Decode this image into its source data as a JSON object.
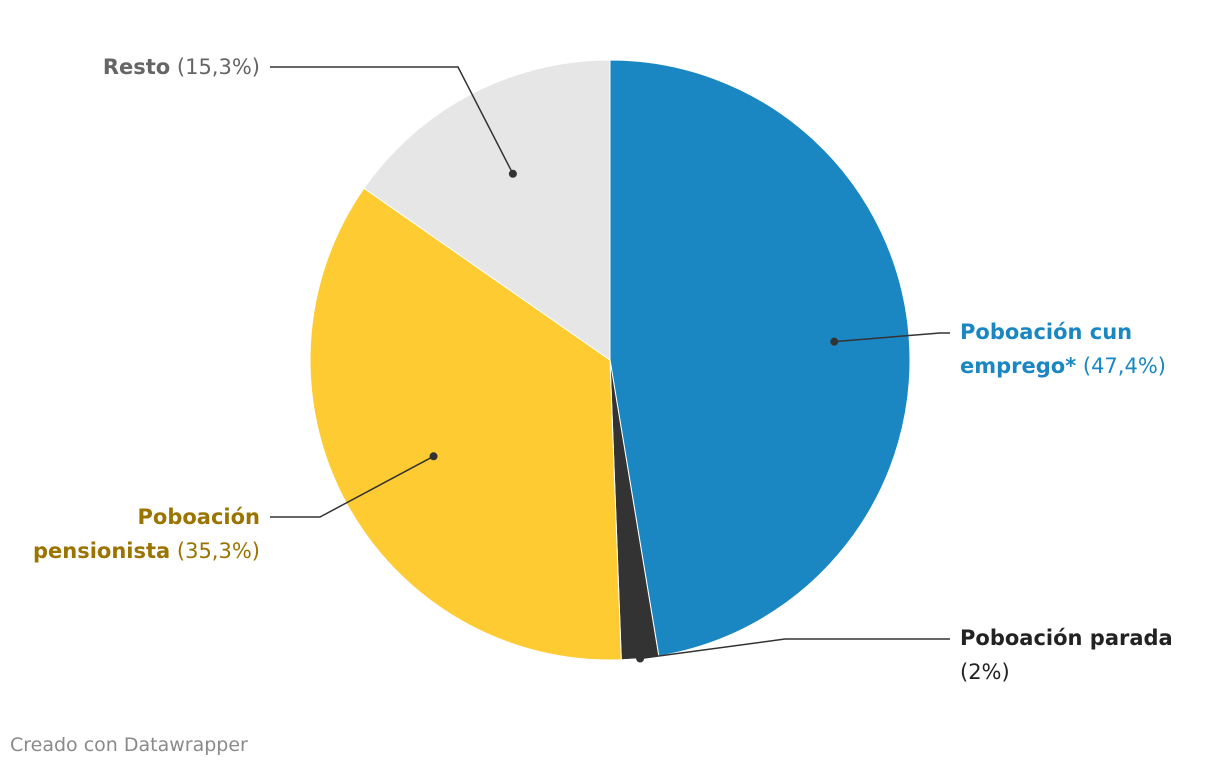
{
  "chart_data": {
    "type": "pie",
    "slices": [
      {
        "label_lines": [
          "Poboación cun",
          "emprego*"
        ],
        "percent_text": "(47,4%)",
        "value": 47.4,
        "color": "#1a87c2",
        "label_color": "#1a87c2"
      },
      {
        "label_lines": [
          "Poboación parada"
        ],
        "percent_text": "(2%)",
        "value": 2.0,
        "color": "#333333",
        "label_color": "#222222"
      },
      {
        "label_lines": [
          "Poboación",
          "pensionista"
        ],
        "percent_text": "(35,3%)",
        "value": 35.3,
        "color": "#fecb33",
        "label_color": "#9b7400"
      },
      {
        "label_lines": [
          "Resto"
        ],
        "percent_text": "(15,3%)",
        "value": 15.3,
        "color": "#e6e6e6",
        "label_color": "#666666"
      }
    ],
    "start": "12 o'clock",
    "direction": "clockwise"
  },
  "footer": "Creado con Datawrapper"
}
